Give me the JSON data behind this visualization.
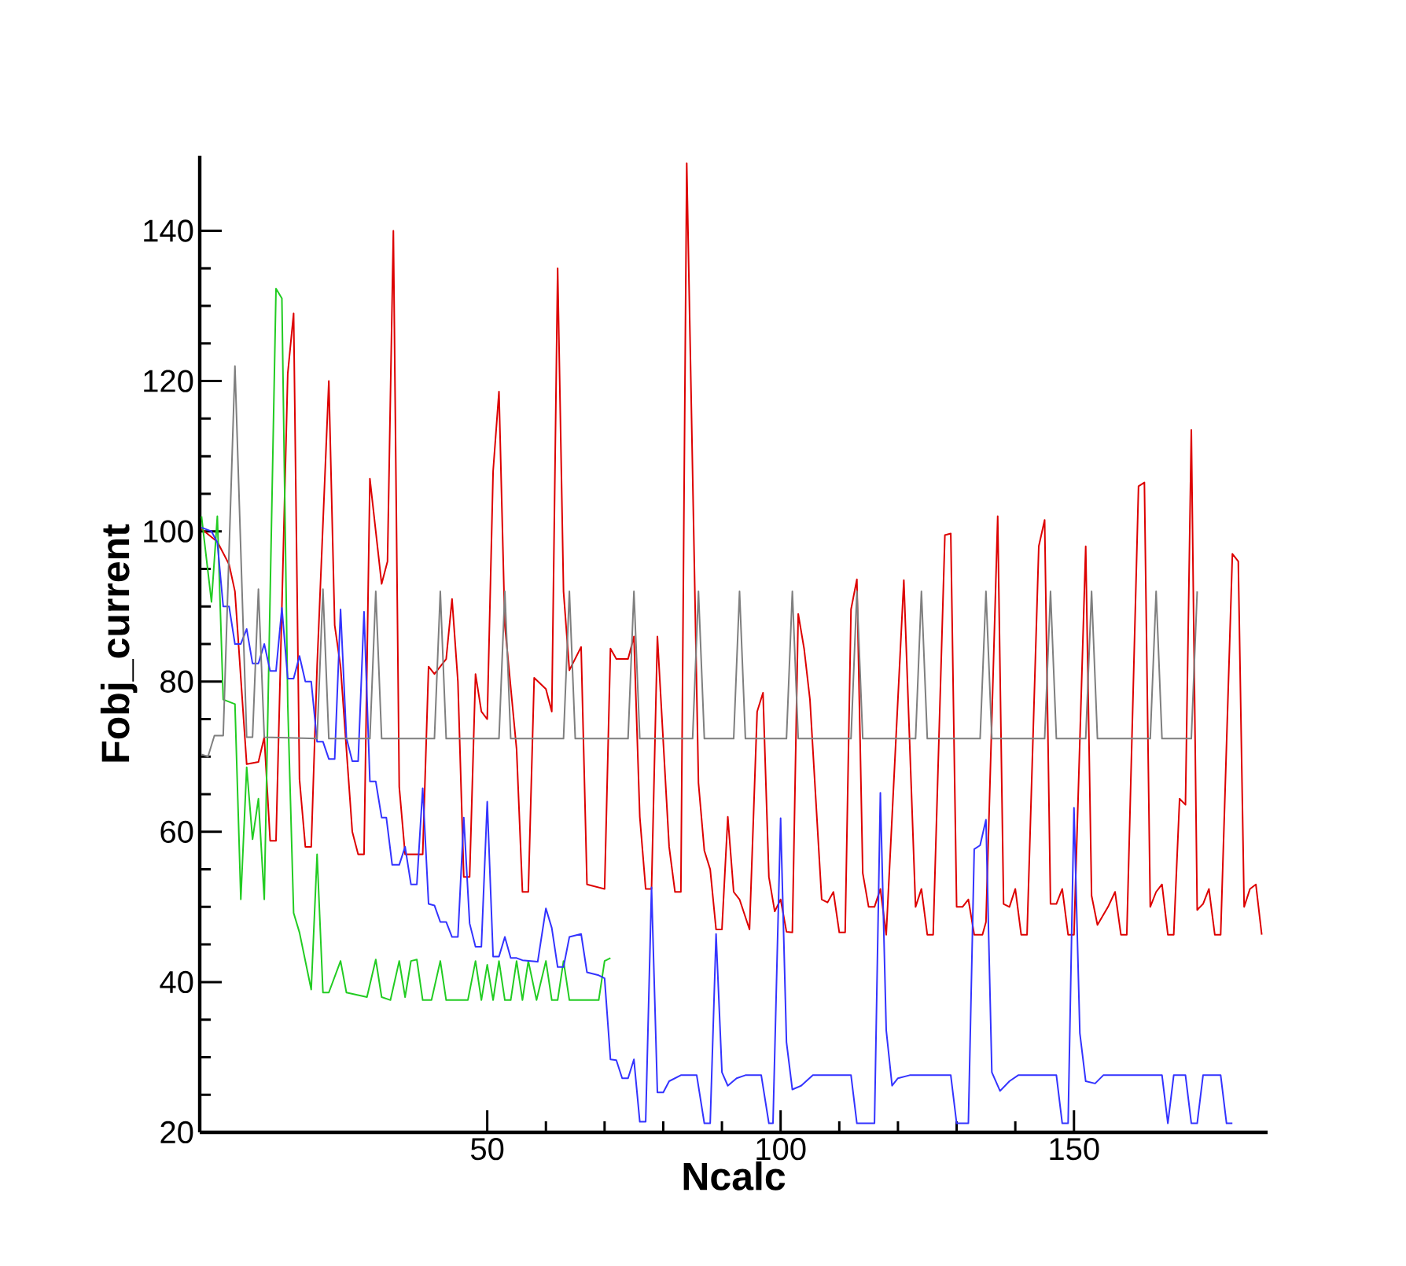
{
  "chart_data": {
    "type": "line",
    "xlabel": "Ncalc",
    "ylabel": "Fobj_current",
    "xlim": [
      1,
      183
    ],
    "ylim": [
      20,
      150
    ],
    "xticks": [
      50,
      100,
      150
    ],
    "yticks": [
      20,
      40,
      60,
      80,
      100,
      120,
      140
    ],
    "series": [
      {
        "color": "#dd0000",
        "x": [
          1.3,
          4,
          6,
          7,
          9,
          11,
          12,
          13,
          14,
          16,
          17,
          18,
          19,
          20,
          21,
          23,
          24,
          25,
          27,
          28,
          29,
          30,
          32,
          33,
          34,
          35,
          36,
          39,
          40,
          41,
          43,
          44,
          45,
          46,
          47,
          48,
          49,
          50,
          51,
          52,
          53,
          55,
          56,
          57,
          58,
          60,
          61,
          62,
          63,
          64,
          66,
          67,
          70,
          71,
          72,
          74,
          75,
          76,
          77,
          78,
          79,
          81,
          82,
          83,
          84,
          86,
          87,
          88,
          89,
          90,
          91,
          92,
          93,
          94.7,
          96,
          97,
          98,
          99,
          100,
          101,
          102,
          103,
          104,
          105,
          107,
          108,
          109,
          110,
          111,
          112,
          113,
          114,
          115,
          116,
          117,
          118,
          121,
          123,
          124,
          125,
          126,
          128,
          129,
          130,
          131,
          132,
          133,
          134.4,
          135,
          137,
          138,
          139,
          140,
          141,
          142,
          144,
          145,
          146,
          147,
          148,
          149,
          150,
          152,
          153,
          154,
          155.8,
          157,
          158,
          159,
          161,
          162,
          163,
          164,
          165,
          166,
          167,
          168,
          169,
          170,
          171,
          172,
          173,
          174,
          175,
          177,
          178,
          179,
          180,
          181,
          182
        ],
        "values": [
          100.3,
          98.6,
          95.6,
          92,
          69,
          69.3,
          72.6,
          58.8,
          58.8,
          121,
          129,
          67,
          58,
          58,
          82,
          120,
          87.5,
          82,
          60,
          57,
          57,
          107,
          93,
          96,
          140,
          66,
          57,
          57,
          82,
          81,
          83,
          91,
          80,
          54,
          54,
          81,
          76,
          75,
          108,
          118.6,
          87.5,
          71,
          52,
          52,
          80.5,
          79,
          76,
          135,
          92,
          81.5,
          84.6,
          53,
          52.4,
          84.4,
          83,
          83,
          86,
          62,
          52.4,
          52.4,
          86,
          58,
          52,
          52,
          149,
          66.5,
          57.5,
          55,
          47,
          47,
          62,
          52,
          51,
          47,
          76,
          78.5,
          54,
          49.4,
          51,
          46.7,
          46.6,
          89,
          84.4,
          77.6,
          51,
          50.6,
          52,
          46.6,
          46.6,
          89.6,
          93.6,
          54.5,
          50,
          50,
          52.4,
          46.3,
          93.5,
          50,
          52.4,
          46.3,
          46.3,
          99.5,
          99.7,
          50,
          50,
          51,
          46.3,
          46.3,
          48,
          102,
          50.4,
          50,
          52.4,
          46.3,
          46.3,
          98,
          101.5,
          50.4,
          50.4,
          52.4,
          46.3,
          46.3,
          98,
          51.5,
          47.6,
          50,
          52,
          46.3,
          46.3,
          106,
          106.5,
          50,
          52,
          53,
          46.3,
          46.3,
          64.4,
          63.6,
          113.5,
          49.6,
          50.4,
          52.4,
          46.3,
          46.3,
          97,
          96,
          50,
          52.4,
          53,
          46.3
        ]
      },
      {
        "color": "#22cc22",
        "x": [
          1.3,
          3,
          4,
          5,
          7,
          8,
          9,
          10,
          11,
          12,
          14,
          15,
          16,
          17,
          18,
          20,
          21,
          22,
          23,
          25,
          26,
          29.5,
          31,
          32,
          33.5,
          35,
          36,
          37,
          38,
          39,
          40.5,
          42,
          43,
          46.7,
          48,
          49,
          50,
          51,
          52,
          53,
          54,
          55,
          56,
          57,
          58.4,
          60,
          61,
          62,
          63,
          64,
          69,
          70,
          71
        ],
        "values": [
          102,
          90.6,
          102,
          77.6,
          77,
          51,
          68.6,
          59,
          64.4,
          51,
          132.3,
          131,
          77,
          49.2,
          46.6,
          39,
          57,
          38.6,
          38.6,
          42.8,
          38.6,
          38,
          43,
          38,
          37.6,
          42.8,
          38,
          42.8,
          43,
          37.6,
          37.6,
          42.8,
          37.6,
          37.6,
          42.8,
          37.6,
          42.3,
          37.6,
          42.8,
          37.6,
          37.6,
          42.8,
          37.6,
          42.8,
          37.6,
          42.8,
          37.6,
          37.6,
          42.8,
          37.6,
          37.6,
          42.8,
          43.2
        ]
      },
      {
        "color": "#3333ff",
        "x": [
          1.3,
          3,
          4,
          5,
          6,
          7,
          8,
          9,
          10,
          11,
          12,
          13,
          14,
          15,
          16,
          17,
          18,
          19,
          20,
          21,
          22,
          23,
          24,
          25,
          26,
          27,
          28,
          29,
          30,
          31,
          32,
          32.8,
          33.8,
          35,
          36,
          37,
          38,
          39,
          40,
          41,
          42,
          43,
          44,
          45,
          46,
          47,
          48,
          49,
          50,
          51,
          52,
          53,
          54,
          55,
          56,
          58.6,
          60,
          61,
          62,
          63,
          64,
          66,
          67,
          69,
          70,
          71,
          72,
          73,
          74,
          75,
          76,
          77,
          78,
          79,
          80,
          81,
          83,
          85.7,
          87,
          88,
          89,
          90,
          91,
          92.5,
          94,
          96.7,
          98,
          98.7,
          100,
          101,
          102,
          103.5,
          105.5,
          112,
          113,
          116,
          117,
          118,
          119,
          120,
          122,
          129,
          130,
          132,
          133,
          134,
          135,
          136,
          137.4,
          139,
          140.5,
          147,
          148,
          149,
          150,
          151,
          152,
          153.6,
          155,
          165,
          166,
          167,
          169,
          170,
          171,
          172,
          175,
          176,
          177
        ],
        "values": [
          100.5,
          100,
          98.5,
          90,
          90,
          85,
          85,
          87,
          82.4,
          82.4,
          85,
          81.4,
          81.4,
          89.8,
          80.4,
          80.4,
          83.4,
          80,
          80,
          72,
          72,
          69.7,
          69.7,
          89.6,
          72.5,
          69.4,
          69.4,
          89.3,
          66.7,
          66.7,
          61.9,
          61.9,
          55.6,
          55.6,
          58,
          53,
          53,
          65.8,
          50.4,
          50.2,
          48,
          48,
          46,
          46,
          61.9,
          47.8,
          44.7,
          44.7,
          64,
          43.4,
          43.4,
          46,
          43.2,
          43.2,
          42.9,
          42.7,
          49.8,
          47.2,
          42,
          42,
          46,
          46.4,
          41.3,
          40.9,
          40.5,
          29.7,
          29.6,
          27.2,
          27.2,
          29.7,
          21.4,
          21.4,
          52.6,
          25.3,
          25.3,
          26.8,
          27.6,
          27.6,
          21.2,
          21.2,
          46.4,
          28,
          26.2,
          27.2,
          27.6,
          27.6,
          21.2,
          21.2,
          61.8,
          32,
          25.7,
          26.2,
          27.6,
          27.6,
          21.2,
          21.2,
          65.2,
          33.6,
          26.2,
          27.2,
          27.6,
          27.6,
          21.2,
          21.2,
          57.7,
          58.2,
          61.6,
          28,
          25.5,
          26.8,
          27.6,
          27.6,
          21.2,
          21.2,
          63.2,
          33.2,
          26.8,
          26.5,
          27.6,
          27.6,
          21.2,
          27.6,
          27.6,
          21.2,
          21.2,
          27.6,
          27.6,
          21.2,
          21.2
        ]
      },
      {
        "color": "#7f7f7f",
        "x": [
          1.3,
          2.4,
          3.5,
          5,
          7,
          9,
          10,
          11,
          12,
          21,
          22,
          23,
          30,
          31,
          32,
          41,
          42,
          43,
          52,
          53,
          54,
          63,
          64,
          65,
          74,
          75,
          76,
          85,
          86,
          87,
          92,
          93,
          94,
          101,
          102,
          103,
          112,
          113,
          114,
          123,
          124,
          125,
          134,
          135,
          136,
          145,
          146,
          147,
          152,
          153,
          154,
          163,
          164,
          165,
          170,
          171
        ],
        "values": [
          70.3,
          70,
          72.8,
          72.8,
          122,
          72.6,
          72.6,
          92.3,
          72.6,
          72.4,
          92.3,
          72.4,
          72.4,
          92,
          72.4,
          72.4,
          92,
          72.4,
          72.4,
          92,
          72.4,
          72.4,
          92,
          72.4,
          72.4,
          92,
          72.4,
          72.4,
          92,
          72.4,
          72.4,
          92,
          72.4,
          72.4,
          92,
          72.4,
          72.4,
          92,
          72.4,
          72.4,
          92,
          72.4,
          72.4,
          92,
          72.4,
          72.4,
          92,
          72.4,
          72.4,
          92,
          72.4,
          72.4,
          92,
          72.4,
          72.4,
          92
        ]
      }
    ]
  }
}
